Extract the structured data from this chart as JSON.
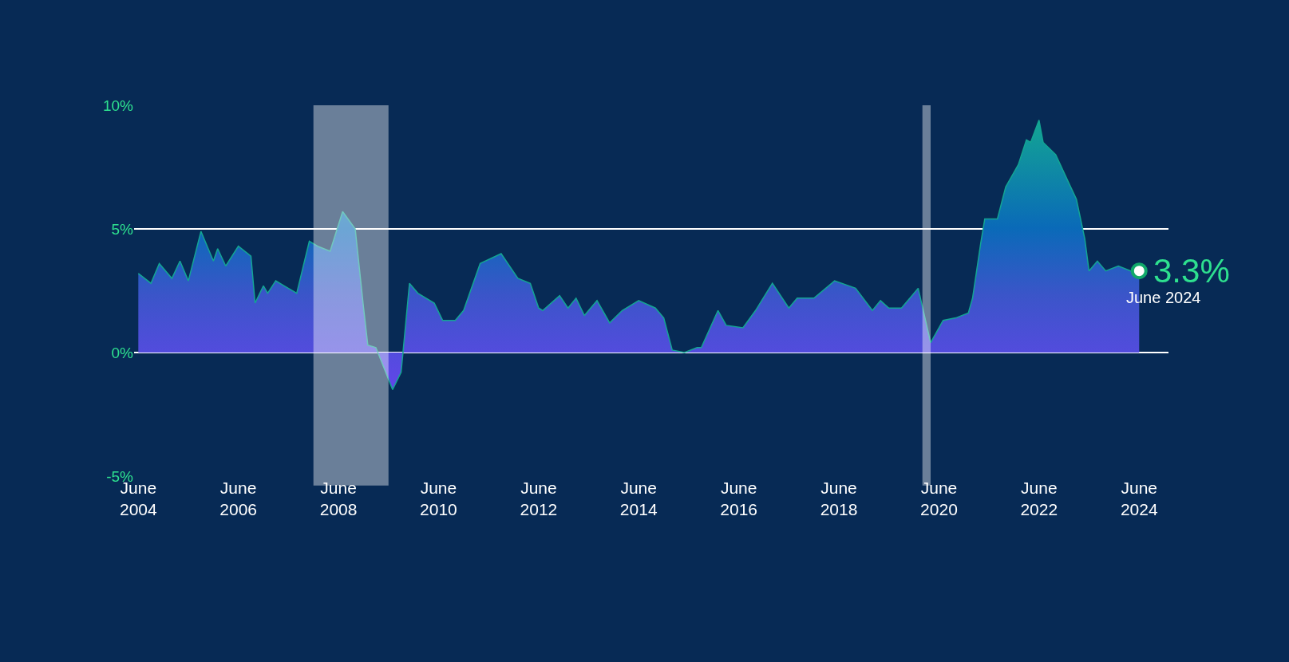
{
  "chart_data": {
    "type": "area",
    "x": [
      "2004-06",
      "2004-09",
      "2004-11",
      "2005-02",
      "2005-04",
      "2005-06",
      "2005-09",
      "2005-12",
      "2006-01",
      "2006-03",
      "2006-06",
      "2006-09",
      "2006-10",
      "2006-12",
      "2007-01",
      "2007-03",
      "2007-05",
      "2007-08",
      "2007-11",
      "2008-01",
      "2008-04",
      "2008-07",
      "2008-10",
      "2008-12",
      "2009-01",
      "2009-03",
      "2009-07",
      "2009-09",
      "2009-11",
      "2010-01",
      "2010-05",
      "2010-07",
      "2010-10",
      "2010-12",
      "2011-04",
      "2011-09",
      "2012-01",
      "2012-04",
      "2012-06",
      "2012-07",
      "2012-11",
      "2013-01",
      "2013-03",
      "2013-05",
      "2013-08",
      "2013-11",
      "2014-02",
      "2014-06",
      "2014-10",
      "2014-12",
      "2015-02",
      "2015-05",
      "2015-08",
      "2015-09",
      "2016-01",
      "2016-03",
      "2016-07",
      "2016-10",
      "2017-02",
      "2017-06",
      "2017-08",
      "2017-12",
      "2018-05",
      "2018-10",
      "2019-02",
      "2019-04",
      "2019-06",
      "2019-09",
      "2020-01",
      "2020-04",
      "2020-07",
      "2020-10",
      "2021-01",
      "2021-02",
      "2021-04",
      "2021-05",
      "2021-08",
      "2021-10",
      "2022-01",
      "2022-03",
      "2022-04",
      "2022-06",
      "2022-07",
      "2022-10",
      "2023-01",
      "2023-03",
      "2023-05",
      "2023-06",
      "2023-08",
      "2023-10",
      "2024-01",
      "2024-04",
      "2024-06"
    ],
    "series": [
      {
        "color": "#13a593",
        "values": [
          3.2,
          2.8,
          3.6,
          3.0,
          3.7,
          2.9,
          4.9,
          3.7,
          4.2,
          3.5,
          4.3,
          3.9,
          2.0,
          2.7,
          2.4,
          2.9,
          2.7,
          2.4,
          4.5,
          4.3,
          4.1,
          5.7,
          5.0,
          1.8,
          0.3,
          0.2,
          -1.5,
          -0.8,
          2.8,
          2.4,
          2.0,
          1.3,
          1.3,
          1.7,
          3.6,
          4.0,
          3.0,
          2.8,
          1.8,
          1.7,
          2.3,
          1.8,
          2.2,
          1.5,
          2.1,
          1.2,
          1.7,
          2.1,
          1.8,
          1.4,
          0.1,
          0.0,
          0.2,
          0.2,
          1.7,
          1.1,
          1.0,
          1.7,
          2.8,
          1.8,
          2.2,
          2.2,
          2.9,
          2.6,
          1.7,
          2.1,
          1.8,
          1.8,
          2.6,
          0.4,
          1.3,
          1.4,
          1.6,
          2.2,
          4.4,
          5.4,
          5.4,
          6.7,
          7.6,
          8.6,
          8.5,
          9.4,
          8.5,
          8.0,
          6.9,
          6.2,
          4.6,
          3.3,
          3.7,
          3.3,
          3.5,
          3.3,
          3.3
        ],
        "value_labels": [
          null,
          null,
          null,
          null,
          null,
          null,
          null,
          null,
          null,
          null,
          null,
          null,
          null,
          null,
          null,
          null,
          null,
          null,
          null,
          null,
          null,
          null,
          null,
          null,
          null,
          null,
          null,
          null,
          null,
          null,
          null,
          null,
          null,
          null,
          null,
          null,
          null,
          null,
          null,
          null,
          null,
          null,
          null,
          null,
          null,
          null,
          null,
          null,
          null,
          null,
          null,
          null,
          null,
          null,
          null,
          null,
          null,
          null,
          null,
          null,
          null,
          null,
          null,
          null,
          null,
          null,
          null,
          null,
          null,
          null,
          null,
          null,
          null,
          null,
          null,
          null,
          null,
          null,
          null,
          null,
          null,
          null,
          null,
          null,
          null,
          null,
          null,
          null,
          null,
          null,
          null,
          null,
          "3.3%"
        ]
      }
    ],
    "annotations": [
      {
        "text": "June 2024",
        "x": "2024-06",
        "y": 3.3
      }
    ],
    "bands": [
      {
        "axis": "x",
        "from": "2007-12",
        "to": "2009-06",
        "color": "#ffffff"
      },
      {
        "axis": "x",
        "from": "2020-02",
        "to": "2020-04",
        "color": "#ffffff"
      }
    ],
    "xlim": [
      "2004-05",
      "2025-01"
    ],
    "xticks": [
      {
        "value": "2004-06",
        "label": "June\n2004"
      },
      {
        "value": "2006-06",
        "label": "June\n2006"
      },
      {
        "value": "2008-06",
        "label": "June\n2008"
      },
      {
        "value": "2010-06",
        "label": "June\n2010"
      },
      {
        "value": "2012-06",
        "label": "June\n2012"
      },
      {
        "value": "2014-06",
        "label": "June\n2014"
      },
      {
        "value": "2016-06",
        "label": "June\n2016"
      },
      {
        "value": "2018-06",
        "label": "June\n2018"
      },
      {
        "value": "2020-06",
        "label": "June\n2020"
      },
      {
        "value": "2022-06",
        "label": "June\n2022"
      },
      {
        "value": "2024-06",
        "label": "June\n2024"
      }
    ],
    "ylim": [
      -5,
      10
    ],
    "yticks": [
      {
        "value": -5,
        "label": "-5%"
      },
      {
        "value": 0,
        "label": "0%"
      },
      {
        "value": 5,
        "label": "5%"
      },
      {
        "value": 10,
        "label": "10%"
      }
    ],
    "grid": "y"
  }
}
